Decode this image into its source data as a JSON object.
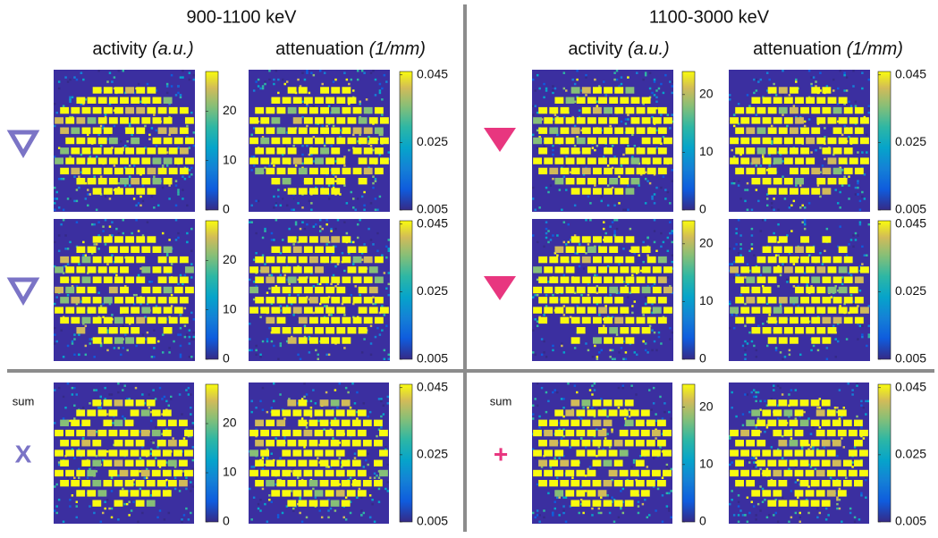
{
  "panels": [
    {
      "title": "900-1100 keV",
      "columns": [
        {
          "label": "activity",
          "unit": "(a.u.)",
          "colorbar": {
            "lim": [
              0,
              28
            ],
            "ticks": [
              0,
              10,
              20
            ]
          }
        },
        {
          "label": "attenuation",
          "unit": "(1/mm)",
          "colorbar": {
            "lim": [
              0.005,
              0.046
            ],
            "ticks": [
              0.005,
              0.025,
              0.045
            ]
          }
        }
      ],
      "sum_row": {
        "label": "sum",
        "symbol": "X"
      }
    },
    {
      "title": "1100-3000 keV",
      "columns": [
        {
          "label": "activity",
          "unit": "(a.u.)",
          "colorbar": {
            "lim": [
              0,
              24
            ],
            "ticks": [
              0,
              10,
              20
            ]
          }
        },
        {
          "label": "attenuation",
          "unit": "(1/mm)",
          "colorbar": {
            "lim": [
              0.005,
              0.046
            ],
            "ticks": [
              0.005,
              0.025,
              0.045
            ]
          }
        }
      ],
      "sum_row": {
        "label": "sum",
        "symbol": "+"
      }
    }
  ]
}
